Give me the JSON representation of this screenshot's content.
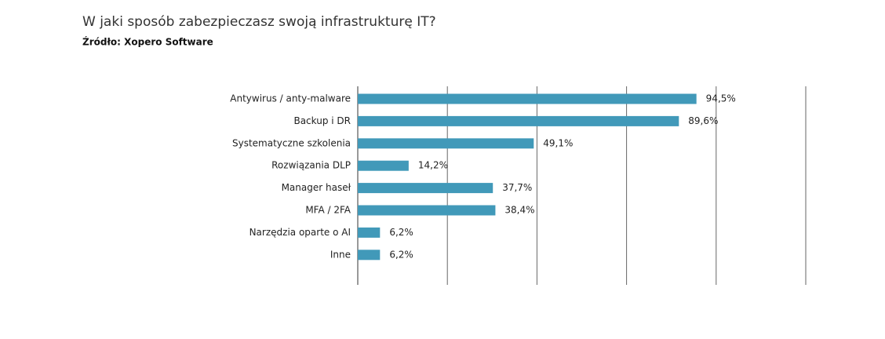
{
  "chart_data": {
    "type": "bar",
    "orientation": "horizontal",
    "title": "W jaki sposób zabezpieczasz swoją infrastrukturę IT?",
    "subtitle": "Źródło: Xopero Software",
    "categories": [
      "Antywirus / anty-malware",
      "Backup i DR",
      "Systematyczne szkolenia",
      "Rozwiązania DLP",
      "Manager haseł",
      "MFA / 2FA",
      "Narzędzia oparte o AI",
      "Inne"
    ],
    "values": [
      94.5,
      89.6,
      49.1,
      14.2,
      37.7,
      38.4,
      6.2,
      6.2
    ],
    "value_labels": [
      "94,5%",
      "89,6%",
      "49,1%",
      "14,2%",
      "37,7%",
      "38,4%",
      "6,2%",
      "6,2%"
    ],
    "color": "#4199b9",
    "xlim": [
      0,
      125
    ],
    "xticks": [
      0,
      25,
      50,
      75,
      100,
      125
    ],
    "grid": true
  }
}
